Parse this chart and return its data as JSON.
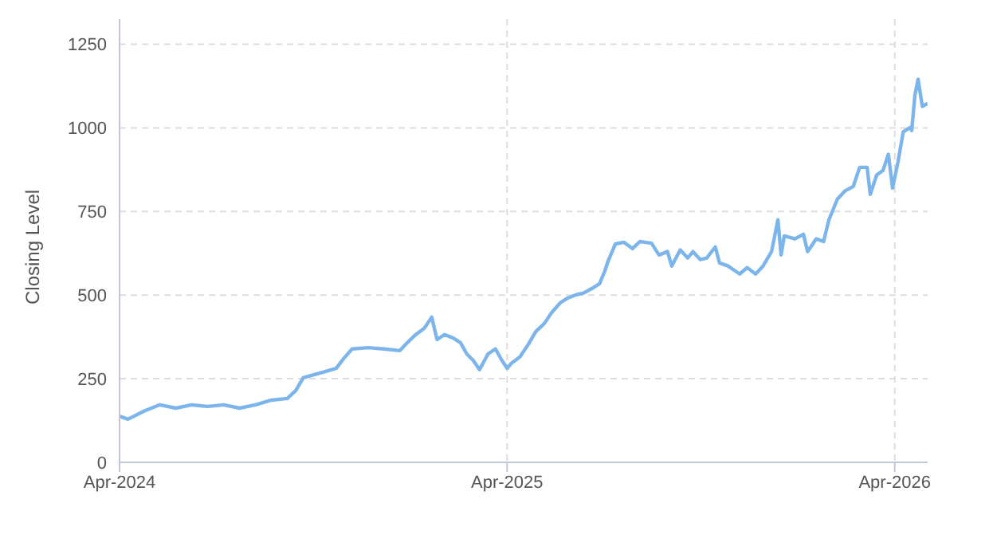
{
  "chart_data": {
    "type": "line",
    "ylabel": "Closing Level",
    "xlim": [
      "2024-04-01",
      "2026-05-02"
    ],
    "xticks": [
      {
        "value": "2024-04-01",
        "label": "Apr-2024"
      },
      {
        "value": "2025-04-01",
        "label": "Apr-2025"
      },
      {
        "value": "2026-04-01",
        "label": "Apr-2026"
      }
    ],
    "ylim": [
      0,
      1325
    ],
    "yticks": [
      0,
      250,
      500,
      750,
      1000,
      1250
    ],
    "grid": true,
    "marker": "none",
    "line_style": "solid",
    "x": [
      "2024-04-01",
      "2024-04-09",
      "2024-04-24",
      "2024-05-01",
      "2024-05-09",
      "2024-05-24",
      "2024-06-08",
      "2024-06-23",
      "2024-07-08",
      "2024-07-23",
      "2024-08-07",
      "2024-08-22",
      "2024-09-06",
      "2024-09-14",
      "2024-09-21",
      "2024-10-07",
      "2024-10-22",
      "2024-10-29",
      "2024-11-06",
      "2024-11-21",
      "2024-12-06",
      "2024-12-21",
      "2024-12-28",
      "2025-01-05",
      "2025-01-13",
      "2025-01-20",
      "2025-01-25",
      "2025-02-01",
      "2025-02-09",
      "2025-02-16",
      "2025-02-22",
      "2025-02-28",
      "2025-03-06",
      "2025-03-14",
      "2025-03-21",
      "2025-03-27",
      "2025-04-01",
      "2025-04-05",
      "2025-04-13",
      "2025-04-21",
      "2025-04-28",
      "2025-05-06",
      "2025-05-13",
      "2025-05-21",
      "2025-05-28",
      "2025-06-05",
      "2025-06-12",
      "2025-06-20",
      "2025-06-27",
      "2025-07-02",
      "2025-07-05",
      "2025-07-12",
      "2025-07-20",
      "2025-07-28",
      "2025-08-04",
      "2025-08-15",
      "2025-08-22",
      "2025-08-30",
      "2025-09-03",
      "2025-09-11",
      "2025-09-18",
      "2025-09-23",
      "2025-09-30",
      "2025-10-06",
      "2025-10-14",
      "2025-10-18",
      "2025-10-26",
      "2025-11-06",
      "2025-11-13",
      "2025-11-21",
      "2025-11-28",
      "2025-12-06",
      "2025-12-12",
      "2025-12-15",
      "2025-12-18",
      "2025-12-28",
      "2026-01-05",
      "2026-01-09",
      "2026-01-17",
      "2026-01-24",
      "2026-01-29",
      "2026-02-06",
      "2026-02-13",
      "2026-02-21",
      "2026-02-27",
      "2026-03-06",
      "2026-03-09",
      "2026-03-15",
      "2026-03-21",
      "2026-03-26",
      "2026-03-30",
      "2026-04-04",
      "2026-04-09",
      "2026-04-16",
      "2026-04-17",
      "2026-04-20",
      "2026-04-23",
      "2026-04-27",
      "2026-05-02"
    ],
    "series": [
      {
        "color": "#7cb5ec",
        "values": [
          138,
          129,
          153,
          162,
          172,
          162,
          172,
          167,
          172,
          162,
          172,
          186,
          191,
          215,
          253,
          267,
          281,
          310,
          339,
          343,
          339,
          334,
          358,
          382,
          401,
          434,
          367,
          382,
          372,
          358,
          324,
          305,
          277,
          324,
          339,
          305,
          281,
          296,
          315,
          353,
          391,
          415,
          448,
          477,
          491,
          501,
          506,
          520,
          534,
          572,
          601,
          653,
          658,
          639,
          660,
          655,
          620,
          630,
          587,
          635,
          611,
          630,
          606,
          611,
          644,
          596,
          587,
          563,
          582,
          563,
          587,
          630,
          725,
          620,
          677,
          668,
          682,
          630,
          668,
          660,
          725,
          787,
          811,
          825,
          882,
          882,
          801,
          859,
          873,
          921,
          820,
          897,
          988,
          1002,
          992,
          1097,
          1145,
          1064,
          1073
        ]
      }
    ]
  }
}
